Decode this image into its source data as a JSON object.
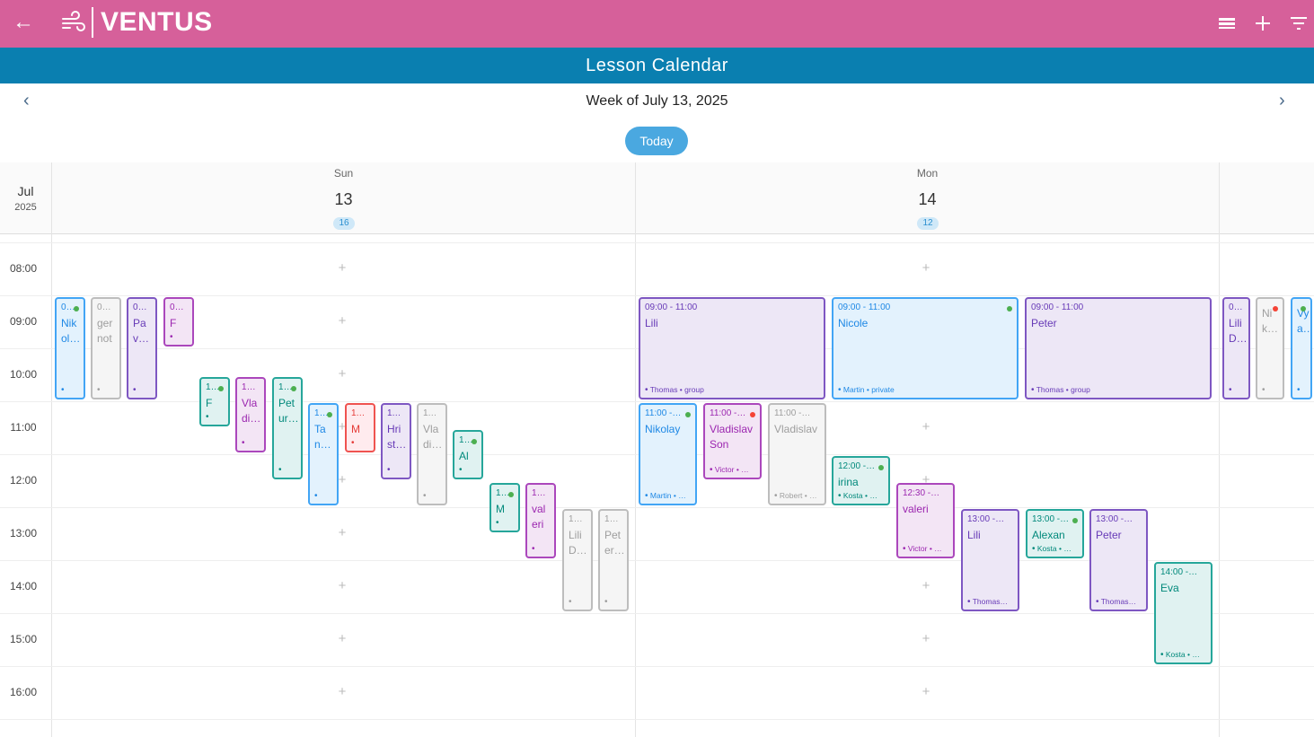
{
  "app": {
    "brand": "VENTUS",
    "page_title": "Lesson Calendar"
  },
  "nav": {
    "week_title": "Week of July 13, 2025",
    "today_label": "Today"
  },
  "calendar": {
    "month": "Jul",
    "year": "2025",
    "days": [
      {
        "name": "Sun",
        "date": "13",
        "count": "16"
      },
      {
        "name": "Mon",
        "date": "14",
        "count": "12"
      }
    ],
    "hours": [
      "08:00",
      "09:00",
      "10:00",
      "11:00",
      "12:00",
      "13:00",
      "14:00",
      "15:00",
      "16:00"
    ],
    "status_colors": {
      "green": "#4caf50",
      "red": "#f44336"
    },
    "events": [
      {
        "day": 0,
        "start": 9,
        "end": 11,
        "color": "blue",
        "time": "0…",
        "name": "Nik ol…",
        "footer": "",
        "status": "green"
      },
      {
        "day": 0,
        "start": 9,
        "end": 11,
        "color": "gray",
        "time": "09…",
        "name": "ger not",
        "footer": "",
        "status": ""
      },
      {
        "day": 0,
        "start": 9,
        "end": 11,
        "color": "purple",
        "time": "09…",
        "name": "Pa v…",
        "footer": "",
        "status": ""
      },
      {
        "day": 0,
        "start": 9,
        "end": 10,
        "color": "magenta",
        "time": "09…",
        "name": "F",
        "footer": "",
        "status": ""
      },
      {
        "day": 0,
        "start": 10.5,
        "end": 11.5,
        "color": "teal",
        "time": "1…",
        "name": "F",
        "footer": "",
        "status": "green"
      },
      {
        "day": 0,
        "start": 10.5,
        "end": 12,
        "color": "magenta",
        "time": "10…",
        "name": "Vla di…",
        "footer": "",
        "status": ""
      },
      {
        "day": 0,
        "start": 10.5,
        "end": 12.5,
        "color": "teal",
        "time": "1…",
        "name": "Pet ur…",
        "footer": "",
        "status": "green"
      },
      {
        "day": 0,
        "start": 11,
        "end": 13,
        "color": "blue",
        "time": "1…",
        "name": "Ta n…",
        "footer": "",
        "status": "green"
      },
      {
        "day": 0,
        "start": 11,
        "end": 12,
        "color": "red",
        "time": "11…",
        "name": "M",
        "footer": "",
        "status": ""
      },
      {
        "day": 0,
        "start": 11,
        "end": 12.5,
        "color": "purple",
        "time": "11…",
        "name": "Hri st…",
        "footer": "",
        "status": ""
      },
      {
        "day": 0,
        "start": 11,
        "end": 13,
        "color": "gray",
        "time": "11…",
        "name": "Vla di…",
        "footer": "",
        "status": ""
      },
      {
        "day": 0,
        "start": 11.5,
        "end": 12.5,
        "color": "teal",
        "time": "1…",
        "name": "Al",
        "footer": "",
        "status": "green"
      },
      {
        "day": 0,
        "start": 12.5,
        "end": 13.5,
        "color": "teal",
        "time": "1…",
        "name": "M",
        "footer": "",
        "status": "green"
      },
      {
        "day": 0,
        "start": 12.5,
        "end": 14,
        "color": "magenta",
        "time": "12…",
        "name": "val eri",
        "footer": "",
        "status": ""
      },
      {
        "day": 0,
        "start": 13,
        "end": 15,
        "color": "gray",
        "time": "13…",
        "name": "Lili D…",
        "footer": "",
        "status": ""
      },
      {
        "day": 0,
        "start": 13,
        "end": 15,
        "color": "gray",
        "time": "13…",
        "name": "Pet er…",
        "footer": "",
        "status": ""
      },
      {
        "day": 1,
        "start": 9,
        "end": 11,
        "color": "purple",
        "time": "09:00 - 11:00",
        "name": "Lili",
        "footer": "Thomas • group",
        "status": ""
      },
      {
        "day": 1,
        "start": 9,
        "end": 11,
        "color": "blue",
        "time": "09:00 - 11:00",
        "name": "Nicole",
        "footer": "Martin • private",
        "status": "green"
      },
      {
        "day": 1,
        "start": 9,
        "end": 11,
        "color": "purple",
        "time": "09:00 - 11:00",
        "name": "Peter",
        "footer": "Thomas • group",
        "status": ""
      },
      {
        "day": 1,
        "start": 11,
        "end": 13,
        "color": "blue",
        "time": "11:00 - …",
        "name": "Nikolay",
        "footer": "Martin • …",
        "status": "green"
      },
      {
        "day": 1,
        "start": 11,
        "end": 12.5,
        "color": "magenta",
        "time": "11:00 - …",
        "name": "Vladislav Son",
        "footer": "Victor • …",
        "status": "red"
      },
      {
        "day": 1,
        "start": 11,
        "end": 13,
        "color": "gray",
        "time": "11:00 - 1…",
        "name": "Vladislav",
        "footer": "Robert • …",
        "status": ""
      },
      {
        "day": 1,
        "start": 12,
        "end": 13,
        "color": "teal",
        "time": "12:00 - …",
        "name": "irina",
        "footer": "Kosta • …",
        "status": "green"
      },
      {
        "day": 1,
        "start": 12.5,
        "end": 14,
        "color": "magenta",
        "time": "12:30 - 1…",
        "name": "valeri",
        "footer": "Victor • …",
        "status": ""
      },
      {
        "day": 1,
        "start": 13,
        "end": 15,
        "color": "purple",
        "time": "13:00 - 1…",
        "name": "Lili",
        "footer": "Thomas…",
        "status": ""
      },
      {
        "day": 1,
        "start": 13,
        "end": 14,
        "color": "teal",
        "time": "13:00 - …",
        "name": "Alexan",
        "footer": "Kosta • …",
        "status": "green"
      },
      {
        "day": 1,
        "start": 13,
        "end": 15,
        "color": "purple",
        "time": "13:00 - 1…",
        "name": "Peter",
        "footer": "Thomas…",
        "status": ""
      },
      {
        "day": 1,
        "start": 14,
        "end": 16,
        "color": "teal",
        "time": "14:00 - 1…",
        "name": "Eva",
        "footer": "Kosta • …",
        "status": ""
      },
      {
        "day": 2,
        "start": 9,
        "end": 11,
        "color": "purple",
        "time": "0…",
        "name": "Lili D…",
        "footer": "",
        "status": ""
      },
      {
        "day": 2,
        "start": 9,
        "end": 11,
        "color": "gray",
        "time": "",
        "name": "Ni k…",
        "footer": "",
        "status": "red"
      },
      {
        "day": 2,
        "start": 9,
        "end": 11,
        "color": "blue",
        "time": "",
        "name": "Vy a…",
        "footer": "",
        "status": "green"
      }
    ]
  }
}
